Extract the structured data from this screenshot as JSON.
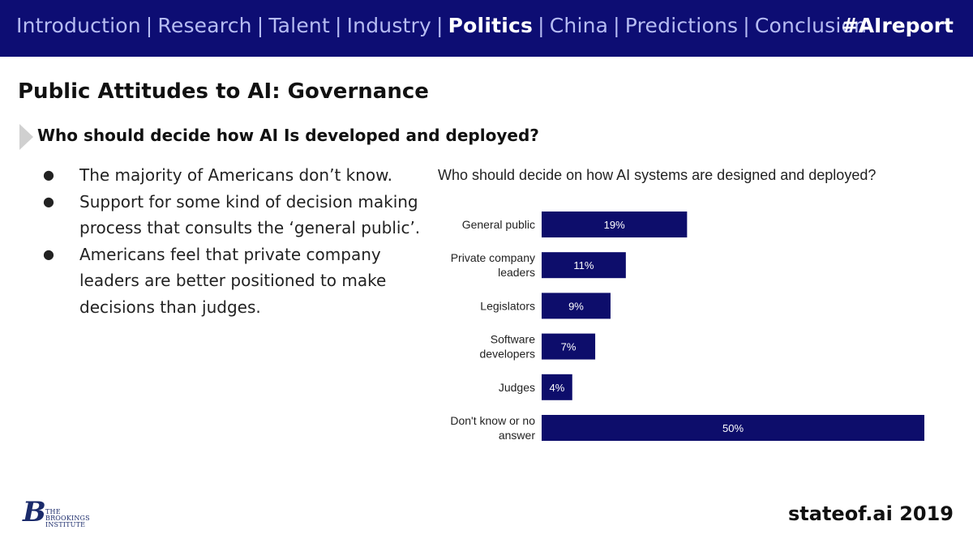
{
  "nav": {
    "items": [
      {
        "label": "Introduction",
        "active": false
      },
      {
        "label": "Research",
        "active": false
      },
      {
        "label": "Talent",
        "active": false
      },
      {
        "label": "Industry",
        "active": false
      },
      {
        "label": "Politics",
        "active": true
      },
      {
        "label": "China",
        "active": false
      },
      {
        "label": "Predictions",
        "active": false
      },
      {
        "label": "Conclusion",
        "active": false
      }
    ],
    "separator": "|",
    "hashtag": "#AIreport"
  },
  "slide": {
    "title": "Public Attitudes to AI: Governance",
    "subtitle": "Who should decide how AI Is developed and deployed?",
    "bullets": [
      "The majority of Americans don’t know.",
      "Support for some kind of decision making process that consults the ‘general public’.",
      "Americans feel that private company leaders are better positioned to make decisions than judges."
    ]
  },
  "chart_data": {
    "type": "bar",
    "orientation": "horizontal",
    "title": "Who should decide on how AI systems are designed and deployed?",
    "categories": [
      [
        "General public"
      ],
      [
        "Private company",
        "leaders"
      ],
      [
        "Legislators"
      ],
      [
        "Software",
        "developers"
      ],
      [
        "Judges"
      ],
      [
        "Don't know or no",
        "answer"
      ]
    ],
    "values": [
      19,
      11,
      9,
      7,
      4,
      50
    ],
    "value_labels": [
      "19%",
      "11%",
      "9%",
      "7%",
      "4%",
      "50%"
    ],
    "unit": "%",
    "xlim": [
      0,
      50
    ],
    "bar_color": "#0d0d6b",
    "grid": false,
    "legend": "none"
  },
  "footer": {
    "logo_letter": "B",
    "logo_text": [
      "THE",
      "BROOKINGS",
      "INSTITUTE"
    ],
    "brand": "stateof.ai 2019"
  },
  "colors": {
    "topbar": "#0d0d73",
    "nav_inactive": "#b6bcf2",
    "nav_active": "#ffffff"
  }
}
